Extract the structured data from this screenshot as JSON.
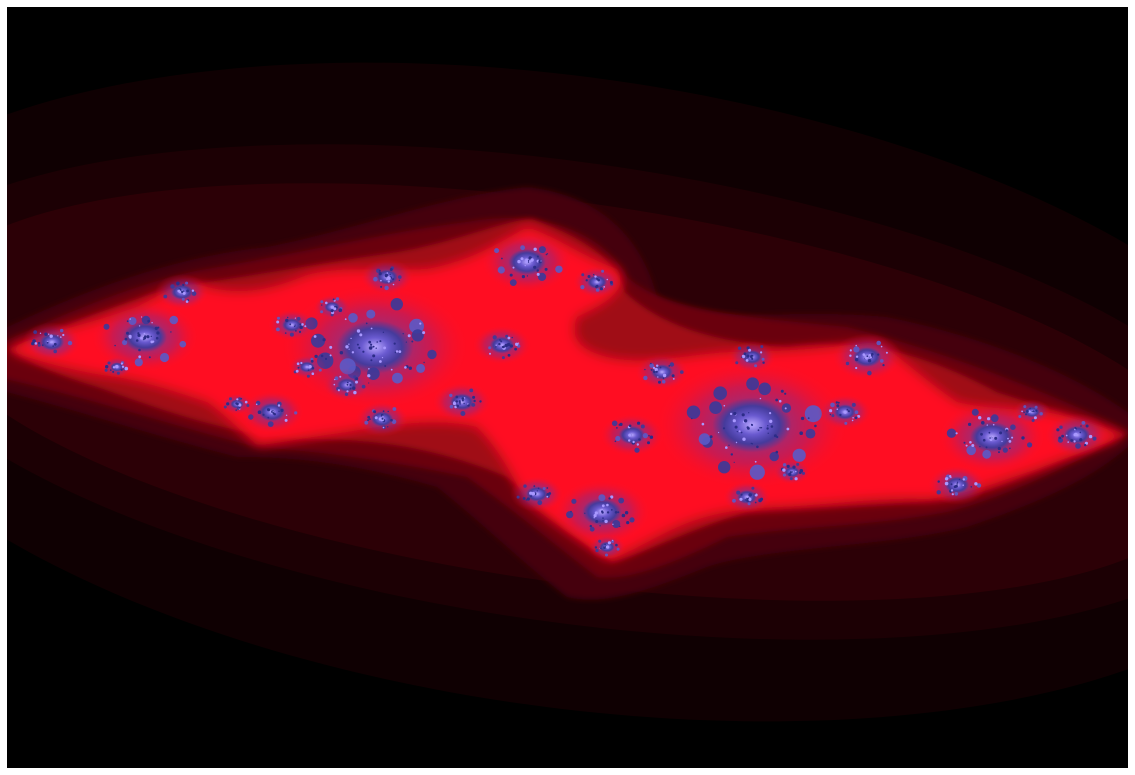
{
  "image": {
    "subject": "julia-set-fractal",
    "palette": {
      "background": "#000000",
      "frame": "#ffffff",
      "outer_band": "#120002",
      "band_2": "#220005",
      "band_3": "#3a0008",
      "band_4": "#5a000c",
      "band_5": "#8a0610",
      "band_6": "#c20c1a",
      "core_red": "#ff1024",
      "fractal_blue": "#4040a8",
      "fractal_light": "#8a7ae0"
    }
  }
}
